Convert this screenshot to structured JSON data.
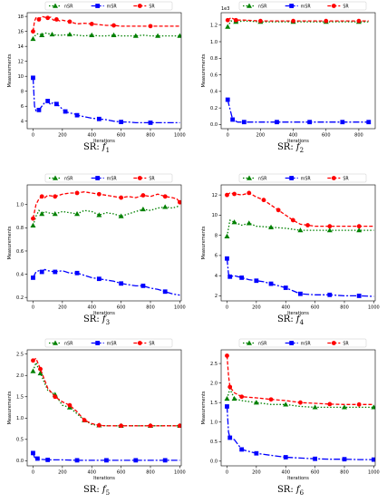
{
  "chart_data": [
    {
      "type": "line",
      "caption_prefix": "SR:",
      "caption_fn": "f",
      "caption_sub": "1",
      "xlabel": "Iterations",
      "ylabel": "Measurements",
      "exponent": "",
      "xlim": [
        -40,
        1010
      ],
      "ylim": [
        3,
        18.5
      ],
      "xticks": [
        0,
        200,
        400,
        600,
        800,
        1000
      ],
      "yticks": [
        4,
        6,
        8,
        10,
        12,
        14,
        16,
        18
      ],
      "legend": "top-center",
      "series": [
        {
          "name": "nSR",
          "color": "#008000",
          "marker": "triangle",
          "dash": "1.5,2",
          "x": [
            0,
            20,
            40,
            60,
            80,
            100,
            130,
            160,
            200,
            250,
            300,
            350,
            400,
            450,
            500,
            550,
            600,
            650,
            700,
            750,
            800,
            850,
            900,
            950,
            1000
          ],
          "y": [
            15.0,
            15.6,
            15.7,
            15.5,
            15.8,
            15.7,
            15.6,
            15.5,
            15.5,
            15.6,
            15.5,
            15.4,
            15.5,
            15.4,
            15.4,
            15.5,
            15.4,
            15.4,
            15.4,
            15.5,
            15.4,
            15.4,
            15.4,
            15.4,
            15.4
          ]
        },
        {
          "name": "mSR",
          "color": "#0000ff",
          "marker": "square",
          "dash": "7,2,2,2",
          "x": [
            0,
            10,
            20,
            40,
            60,
            80,
            100,
            120,
            140,
            160,
            180,
            200,
            220,
            250,
            280,
            300,
            350,
            400,
            450,
            500,
            550,
            600,
            650,
            700,
            800,
            900,
            1000
          ],
          "y": [
            9.8,
            6.0,
            5.4,
            5.5,
            6.0,
            6.5,
            6.7,
            6.2,
            6.6,
            6.3,
            6.0,
            5.6,
            5.3,
            5.1,
            5.0,
            4.8,
            4.6,
            4.4,
            4.3,
            4.2,
            4.0,
            3.9,
            3.9,
            3.8,
            3.8,
            3.8,
            3.8
          ]
        },
        {
          "name": "SR",
          "color": "#ff0000",
          "marker": "circle",
          "dash": "4,2",
          "x": [
            0,
            10,
            20,
            40,
            60,
            80,
            100,
            120,
            140,
            160,
            180,
            200,
            250,
            300,
            350,
            400,
            450,
            500,
            550,
            600,
            700,
            800,
            900,
            1000
          ],
          "y": [
            16.0,
            17.4,
            17.8,
            17.6,
            18.0,
            17.9,
            17.8,
            17.9,
            17.5,
            17.6,
            17.4,
            17.5,
            17.3,
            17.0,
            17.1,
            17.0,
            16.9,
            16.8,
            16.8,
            16.7,
            16.7,
            16.7,
            16.7,
            16.7
          ]
        }
      ]
    },
    {
      "type": "line",
      "caption_prefix": "SR:",
      "caption_fn": "f",
      "caption_sub": "2",
      "xlabel": "Iterations",
      "ylabel": "Measurements",
      "exponent": "1e3",
      "xlim": [
        -40,
        900
      ],
      "ylim": [
        -0.05,
        1.35
      ],
      "xticks": [
        0,
        200,
        400,
        600,
        800
      ],
      "yticks": [
        0.0,
        0.2,
        0.4,
        0.6,
        0.8,
        1.0,
        1.2
      ],
      "legend": "top-center",
      "series": [
        {
          "name": "nSR",
          "color": "#008000",
          "marker": "triangle",
          "dash": "1.5,2",
          "x": [
            0,
            20,
            50,
            100,
            200,
            300,
            400,
            500,
            600,
            700,
            800,
            860
          ],
          "y": [
            1.18,
            1.25,
            1.24,
            1.25,
            1.24,
            1.24,
            1.24,
            1.24,
            1.24,
            1.24,
            1.24,
            1.24
          ]
        },
        {
          "name": "mSR",
          "color": "#0000ff",
          "marker": "square",
          "dash": "7,2,2,2",
          "x": [
            0,
            10,
            30,
            60,
            100,
            200,
            300,
            400,
            500,
            600,
            700,
            800,
            860
          ],
          "y": [
            0.3,
            0.22,
            0.06,
            0.03,
            0.03,
            0.03,
            0.03,
            0.03,
            0.03,
            0.03,
            0.03,
            0.03,
            0.03
          ]
        },
        {
          "name": "SR",
          "color": "#ff0000",
          "marker": "circle",
          "dash": "4,2",
          "x": [
            0,
            20,
            50,
            100,
            200,
            300,
            400,
            500,
            600,
            700,
            800,
            860
          ],
          "y": [
            1.26,
            1.29,
            1.26,
            1.26,
            1.25,
            1.25,
            1.25,
            1.25,
            1.25,
            1.25,
            1.25,
            1.25
          ]
        }
      ]
    },
    {
      "type": "line",
      "caption_prefix": "SR:",
      "caption_fn": "f",
      "caption_sub": "3",
      "xlabel": "Iterations",
      "ylabel": "Measurements",
      "exponent": "",
      "xlim": [
        -40,
        1010
      ],
      "ylim": [
        0.17,
        1.17
      ],
      "xticks": [
        0,
        200,
        400,
        600,
        800,
        1000
      ],
      "yticks": [
        0.2,
        0.4,
        0.6,
        0.8,
        1.0
      ],
      "legend": "top-center",
      "series": [
        {
          "name": "nSR",
          "color": "#008000",
          "marker": "triangle",
          "dash": "1.5,2",
          "x": [
            0,
            20,
            40,
            60,
            80,
            100,
            150,
            200,
            250,
            300,
            350,
            400,
            450,
            500,
            550,
            600,
            650,
            700,
            750,
            800,
            850,
            900,
            950,
            1000
          ],
          "y": [
            0.82,
            0.9,
            0.95,
            0.92,
            0.94,
            0.93,
            0.92,
            0.94,
            0.93,
            0.92,
            0.95,
            0.94,
            0.91,
            0.93,
            0.92,
            0.9,
            0.92,
            0.94,
            0.96,
            0.95,
            0.97,
            0.98,
            0.97,
            0.99
          ]
        },
        {
          "name": "mSR",
          "color": "#0000ff",
          "marker": "square",
          "dash": "7,2,2,2",
          "x": [
            0,
            20,
            40,
            60,
            80,
            100,
            150,
            200,
            250,
            300,
            350,
            400,
            450,
            500,
            550,
            600,
            650,
            700,
            750,
            800,
            850,
            900,
            950,
            1000
          ],
          "y": [
            0.37,
            0.42,
            0.43,
            0.42,
            0.44,
            0.43,
            0.42,
            0.43,
            0.41,
            0.41,
            0.39,
            0.37,
            0.36,
            0.35,
            0.34,
            0.32,
            0.31,
            0.3,
            0.3,
            0.28,
            0.27,
            0.25,
            0.23,
            0.22
          ]
        },
        {
          "name": "SR",
          "color": "#ff0000",
          "marker": "circle",
          "dash": "4,2",
          "x": [
            0,
            20,
            40,
            60,
            80,
            100,
            150,
            200,
            250,
            300,
            350,
            400,
            450,
            500,
            550,
            600,
            650,
            700,
            750,
            800,
            850,
            900,
            950,
            980,
            1000
          ],
          "y": [
            0.88,
            1.0,
            1.05,
            1.07,
            1.06,
            1.08,
            1.07,
            1.09,
            1.1,
            1.1,
            1.11,
            1.1,
            1.09,
            1.08,
            1.07,
            1.06,
            1.07,
            1.06,
            1.08,
            1.07,
            1.09,
            1.07,
            1.06,
            1.05,
            1.02
          ]
        }
      ]
    },
    {
      "type": "line",
      "caption_prefix": "SR:",
      "caption_fn": "f",
      "caption_sub": "4",
      "xlabel": "Iterations",
      "ylabel": "Measurements",
      "exponent": "",
      "xlim": [
        -40,
        1010
      ],
      "ylim": [
        1.5,
        13
      ],
      "xticks": [
        0,
        200,
        400,
        600,
        800,
        1000
      ],
      "yticks": [
        2,
        4,
        6,
        8,
        10,
        12
      ],
      "legend": "top-center",
      "series": [
        {
          "name": "nSR",
          "color": "#008000",
          "marker": "triangle",
          "dash": "1.5,2",
          "x": [
            0,
            20,
            50,
            100,
            150,
            200,
            300,
            400,
            500,
            600,
            700,
            800,
            900,
            1000
          ],
          "y": [
            7.9,
            9.5,
            9.3,
            9.0,
            9.2,
            8.9,
            8.8,
            8.7,
            8.5,
            8.5,
            8.5,
            8.5,
            8.5,
            8.5
          ]
        },
        {
          "name": "mSR",
          "color": "#0000ff",
          "marker": "square",
          "dash": "7,2,2,2",
          "x": [
            0,
            10,
            20,
            50,
            100,
            150,
            200,
            250,
            300,
            350,
            400,
            450,
            500,
            600,
            700,
            800,
            900,
            1000
          ],
          "y": [
            5.7,
            4.2,
            3.9,
            4.0,
            3.8,
            3.6,
            3.5,
            3.4,
            3.2,
            3.0,
            2.8,
            2.5,
            2.2,
            2.1,
            2.1,
            2.0,
            2.0,
            1.95
          ]
        },
        {
          "name": "SR",
          "color": "#ff0000",
          "marker": "circle",
          "dash": "4,2",
          "x": [
            0,
            20,
            50,
            100,
            150,
            200,
            250,
            300,
            350,
            400,
            450,
            500,
            550,
            600,
            700,
            800,
            900,
            1000
          ],
          "y": [
            12.0,
            12.2,
            12.1,
            12.0,
            12.2,
            11.8,
            11.5,
            11.0,
            10.5,
            10.0,
            9.5,
            9.1,
            9.0,
            8.9,
            8.9,
            8.9,
            8.9,
            8.9
          ]
        }
      ]
    },
    {
      "type": "line",
      "caption_prefix": "SR:",
      "caption_fn": "f",
      "caption_sub": "5",
      "xlabel": "Iterations",
      "ylabel": "Measurements",
      "exponent": "",
      "xlim": [
        -40,
        1010
      ],
      "ylim": [
        -0.12,
        2.6
      ],
      "xticks": [
        0,
        200,
        400,
        600,
        800,
        1000
      ],
      "yticks": [
        0.0,
        0.5,
        1.0,
        1.5,
        2.0,
        2.5
      ],
      "legend": "top-center",
      "series": [
        {
          "name": "nSR",
          "color": "#008000",
          "marker": "triangle",
          "dash": "1.5,2",
          "x": [
            0,
            20,
            50,
            100,
            150,
            200,
            250,
            300,
            350,
            400,
            450,
            500,
            600,
            700,
            800,
            900,
            1000
          ],
          "y": [
            2.1,
            2.3,
            2.05,
            1.65,
            1.55,
            1.3,
            1.25,
            1.1,
            0.95,
            0.85,
            0.83,
            0.82,
            0.82,
            0.82,
            0.82,
            0.82,
            0.82
          ]
        },
        {
          "name": "mSR",
          "color": "#0000ff",
          "marker": "square",
          "dash": "7,2,2,2",
          "x": [
            0,
            10,
            30,
            60,
            100,
            200,
            300,
            400,
            500,
            600,
            700,
            800,
            900,
            1000
          ],
          "y": [
            0.18,
            0.08,
            0.05,
            0.03,
            0.02,
            0.02,
            0.01,
            0.01,
            0.01,
            0.01,
            0.01,
            0.01,
            0.01,
            0.01
          ]
        },
        {
          "name": "SR",
          "color": "#ff0000",
          "marker": "circle",
          "dash": "4,2",
          "x": [
            0,
            20,
            50,
            100,
            150,
            200,
            250,
            300,
            350,
            400,
            450,
            500,
            600,
            700,
            800,
            900,
            1000
          ],
          "y": [
            2.35,
            2.4,
            2.15,
            1.7,
            1.5,
            1.38,
            1.3,
            1.15,
            0.95,
            0.87,
            0.83,
            0.82,
            0.82,
            0.82,
            0.82,
            0.82,
            0.82
          ]
        }
      ]
    },
    {
      "type": "line",
      "caption_prefix": "SR:",
      "caption_fn": "f",
      "caption_sub": "6",
      "xlabel": "Iterations",
      "ylabel": "Measurements",
      "exponent": "",
      "xlim": [
        -40,
        1010
      ],
      "ylim": [
        -0.12,
        2.85
      ],
      "xticks": [
        0,
        200,
        400,
        600,
        800,
        1000
      ],
      "yticks": [
        0.0,
        0.5,
        1.0,
        1.5,
        2.0,
        2.5
      ],
      "legend": "top-center",
      "series": [
        {
          "name": "nSR",
          "color": "#008000",
          "marker": "triangle",
          "dash": "1.5,2",
          "x": [
            0,
            20,
            50,
            100,
            200,
            300,
            400,
            500,
            600,
            700,
            800,
            900,
            1000
          ],
          "y": [
            1.6,
            1.85,
            1.6,
            1.55,
            1.5,
            1.45,
            1.45,
            1.4,
            1.38,
            1.38,
            1.38,
            1.38,
            1.38
          ]
        },
        {
          "name": "mSR",
          "color": "#0000ff",
          "marker": "square",
          "dash": "7,2,2,2",
          "x": [
            0,
            10,
            20,
            50,
            100,
            150,
            200,
            300,
            400,
            500,
            600,
            700,
            800,
            900,
            1000
          ],
          "y": [
            1.4,
            0.75,
            0.6,
            0.55,
            0.3,
            0.25,
            0.2,
            0.15,
            0.1,
            0.08,
            0.06,
            0.05,
            0.05,
            0.04,
            0.04
          ]
        },
        {
          "name": "SR",
          "color": "#ff0000",
          "marker": "circle",
          "dash": "4,2",
          "x": [
            0,
            10,
            20,
            50,
            100,
            200,
            300,
            400,
            500,
            600,
            700,
            800,
            900,
            1000
          ],
          "y": [
            2.7,
            2.2,
            1.9,
            1.75,
            1.65,
            1.62,
            1.58,
            1.55,
            1.5,
            1.48,
            1.46,
            1.45,
            1.45,
            1.45
          ]
        }
      ]
    }
  ]
}
